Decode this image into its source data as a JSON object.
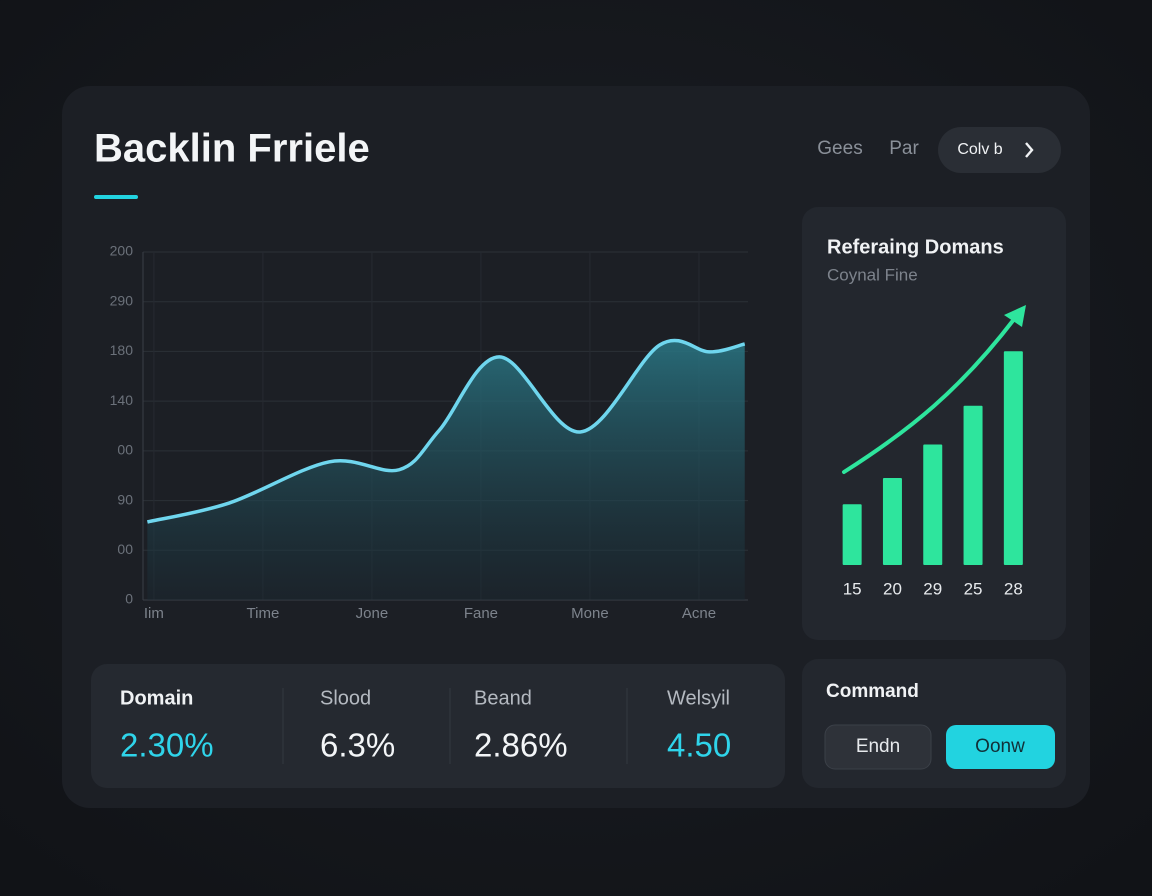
{
  "header": {
    "title": "Backlin Frriele",
    "nav": [
      "Gees",
      "Par"
    ],
    "button": "Colv b"
  },
  "chart_data": [
    {
      "type": "area",
      "x": [
        -0.06,
        0.69,
        1.61,
        2.25,
        2.62,
        3.17,
        3.91,
        4.64,
        5.1,
        5.42
      ],
      "series": [
        {
          "color": "#6fd6ee",
          "values": [
            1.57,
            1.95,
            2.78,
            2.62,
            3.42,
            4.89,
            3.38,
            5.13,
            4.99,
            5.15
          ]
        }
      ],
      "xlim": [
        -0.1,
        5.45
      ],
      "xticks": [
        {
          "value": 0,
          "label": "Iim"
        },
        {
          "value": 1,
          "label": "Time"
        },
        {
          "value": 2,
          "label": "Jone"
        },
        {
          "value": 3,
          "label": "Fane"
        },
        {
          "value": 4,
          "label": "Mone"
        },
        {
          "value": 5,
          "label": "Acne"
        }
      ],
      "ylim": [
        0,
        7
      ],
      "yticks": [
        0,
        {
          "value": 1,
          "label": "00"
        },
        {
          "value": 2,
          "label": "90"
        },
        {
          "value": 3,
          "label": "00"
        },
        {
          "value": 4,
          "label": "140"
        },
        {
          "value": 5,
          "label": "180"
        },
        {
          "value": 6,
          "label": "290"
        },
        {
          "value": 7,
          "label": "200"
        }
      ],
      "grid": true
    },
    {
      "type": "bar",
      "title": "Referaing Domans",
      "subtitle": "Coynal Fine",
      "categories": [
        "15",
        "20",
        "29",
        "25",
        "28"
      ],
      "values": [
        58,
        83,
        115,
        152,
        204
      ],
      "color": "#2ee59d",
      "ylim": [
        0,
        210
      ]
    }
  ],
  "stats": [
    {
      "label": "Domain",
      "value": "2.30%"
    },
    {
      "label": "Slood",
      "value": "6.3%"
    },
    {
      "label": "Beand",
      "value": "2.86%"
    },
    {
      "label": "Welsyil",
      "value": "4.50"
    }
  ],
  "command": {
    "title": "Command",
    "buttons": [
      "Endn",
      "Oonw"
    ]
  }
}
